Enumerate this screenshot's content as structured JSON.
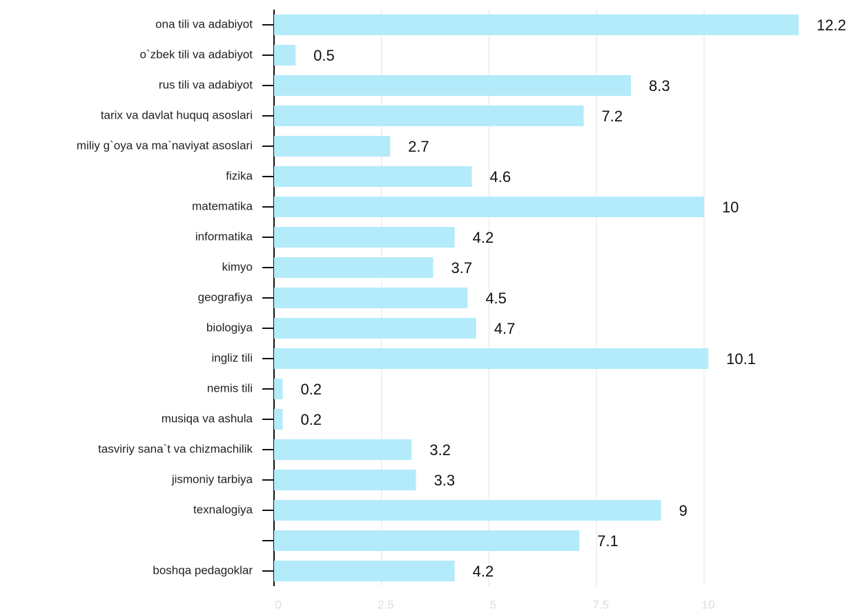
{
  "chart_data": {
    "type": "bar",
    "orientation": "horizontal",
    "categories": [
      "ona tili va adabiyot",
      "o`zbek tili va adabiyot",
      "rus tili va adabiyot",
      "tarix va davlat huquq asoslari",
      "miliy g`oya va ma`naviyat asoslari",
      "fizika",
      "matematika",
      "informatika",
      "kimyo",
      "geografiya",
      "biologiya",
      "ingliz tili",
      "nemis tili",
      "musiqa va ashula",
      "tasviriy sana`t va chizmachilik",
      "jismoniy tarbiya",
      "texnalogiya",
      null,
      "boshqa pedagoklar"
    ],
    "values": [
      12.2,
      0.5,
      8.3,
      7.2,
      2.7,
      4.6,
      10,
      4.2,
      3.7,
      4.5,
      4.7,
      10.1,
      0.2,
      0.2,
      3.2,
      3.3,
      9,
      7.1,
      4.2
    ],
    "color": "#b3ebfb",
    "xlim": [
      0,
      12.2
    ],
    "xticks": [
      0,
      2.5,
      5,
      7.5,
      10
    ],
    "grid": true
  }
}
